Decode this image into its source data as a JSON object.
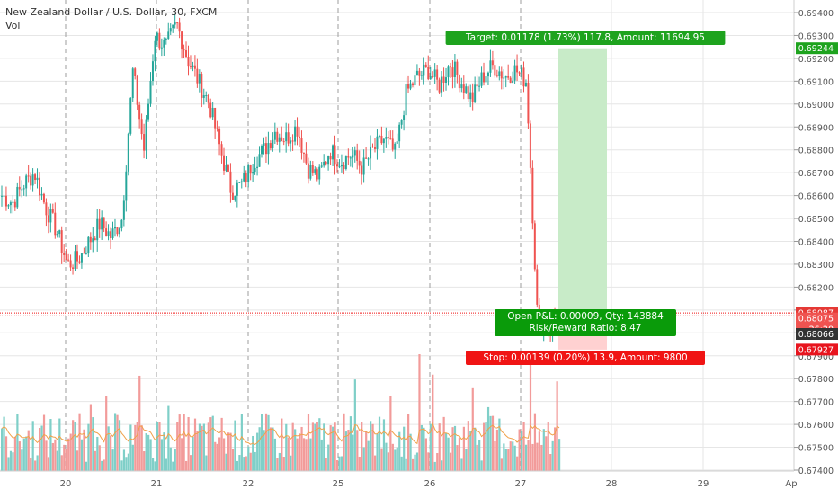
{
  "header": {
    "title": "New Zealand Dollar / U.S. Dollar, 30, FXCM",
    "indicator": "Vol"
  },
  "chart_data": {
    "type": "candlestick",
    "symbol": "New Zealand Dollar / U.S. Dollar",
    "interval": "30",
    "source": "FXCM",
    "y_ticks": [
      0.674,
      0.675,
      0.676,
      0.677,
      0.678,
      0.679,
      0.68,
      0.681,
      0.682,
      0.683,
      0.684,
      0.685,
      0.686,
      0.687,
      0.688,
      0.689,
      0.69,
      0.691,
      0.692,
      0.693,
      0.694
    ],
    "y_tick_labels": [
      "0.67400",
      "0.67500",
      "0.67600",
      "0.67700",
      "0.67800",
      "0.67900",
      "0.68000",
      "0.68100",
      "0.68200",
      "0.68300",
      "0.68400",
      "0.68500",
      "0.68600",
      "0.68700",
      "0.68800",
      "0.68900",
      "0.69000",
      "0.69100",
      "0.69200",
      "0.69300",
      "0.69400"
    ],
    "y_range": [
      0.6737,
      0.695
    ],
    "x_ticks": [
      "20",
      "21",
      "22",
      "25",
      "26",
      "27",
      "28",
      "29",
      "Ap"
    ],
    "price_badges": [
      {
        "value": "0.69244",
        "color": "#1ea31e"
      },
      {
        "value": "0.68087",
        "color": "#e53935"
      },
      {
        "value": "0.68075",
        "color": "#ef5350"
      },
      {
        "value": "26:20",
        "color": "#ef5350"
      },
      {
        "value": "0.68066",
        "color": "#333333"
      },
      {
        "value": "0.67927",
        "color": "#e8141e"
      }
    ],
    "position": {
      "target_label": "Target: 0.01178 (1.73%) 117.8, Amount: 11694.95",
      "open_label_1": "Open P&L: 0.00009, Qty: 143884",
      "open_label_2": "Risk/Reward Ratio: 8.47",
      "stop_label": "Stop: 0.00139 (0.20%) 13.9, Amount: 9800",
      "entry": 0.68066,
      "target": 0.69244,
      "stop": 0.67927
    },
    "path": [
      [
        "20",
        0.686
      ],
      [
        "20",
        0.6857
      ],
      [
        "20",
        0.6865
      ],
      [
        "20",
        0.687
      ],
      [
        "20",
        0.6855
      ],
      [
        "20",
        0.6845
      ],
      [
        "20",
        0.683
      ],
      [
        "20",
        0.6832
      ],
      [
        "20",
        0.684
      ],
      [
        "20",
        0.6848
      ],
      [
        "20",
        0.6842
      ],
      [
        "20",
        0.685
      ],
      [
        "21",
        0.6915
      ],
      [
        "21",
        0.688
      ],
      [
        "21",
        0.693
      ],
      [
        "21",
        0.6925
      ],
      [
        "21",
        0.6935
      ],
      [
        "21",
        0.692
      ],
      [
        "21",
        0.691
      ],
      [
        "21",
        0.69
      ],
      [
        "21",
        0.688
      ],
      [
        "21",
        0.6862
      ],
      [
        "21",
        0.6865
      ],
      [
        "22",
        0.6875
      ],
      [
        "22",
        0.688
      ],
      [
        "22",
        0.6888
      ],
      [
        "22",
        0.6885
      ],
      [
        "22",
        0.689
      ],
      [
        "22",
        0.6872
      ],
      [
        "22",
        0.6868
      ],
      [
        "22",
        0.688
      ],
      [
        "22",
        0.6875
      ],
      [
        "25",
        0.6878
      ],
      [
        "25",
        0.6872
      ],
      [
        "25",
        0.688
      ],
      [
        "25",
        0.6885
      ],
      [
        "25",
        0.6878
      ],
      [
        "25",
        0.6905
      ],
      [
        "25",
        0.6912
      ],
      [
        "25",
        0.6915
      ],
      [
        "26",
        0.6908
      ],
      [
        "26",
        0.6918
      ],
      [
        "26",
        0.691
      ],
      [
        "26",
        0.6902
      ],
      [
        "26",
        0.6912
      ],
      [
        "26",
        0.6917
      ],
      [
        "26",
        0.6912
      ],
      [
        "26",
        0.6915
      ],
      [
        "27",
        0.691
      ],
      [
        "27",
        0.6807
      ],
      [
        "27",
        0.6803
      ],
      [
        "27",
        0.6806
      ]
    ],
    "candle_count": 252,
    "volume_count": 252,
    "grid": true,
    "legend": "none"
  },
  "colors": {
    "up": "#26a69a",
    "down": "#ef5350",
    "vol_up": "#7fcfc8",
    "vol_down": "#f29b9a",
    "vol_ma": "#f0a14a",
    "target_zone": "#c8ebc8",
    "stop_zone": "#ffd1d1",
    "target_tag": "#1ea31e",
    "open_tag": "#0a9b0a",
    "stop_tag": "#f01414",
    "grid": "#e6e6e6",
    "vline": "#9e9e9e"
  }
}
